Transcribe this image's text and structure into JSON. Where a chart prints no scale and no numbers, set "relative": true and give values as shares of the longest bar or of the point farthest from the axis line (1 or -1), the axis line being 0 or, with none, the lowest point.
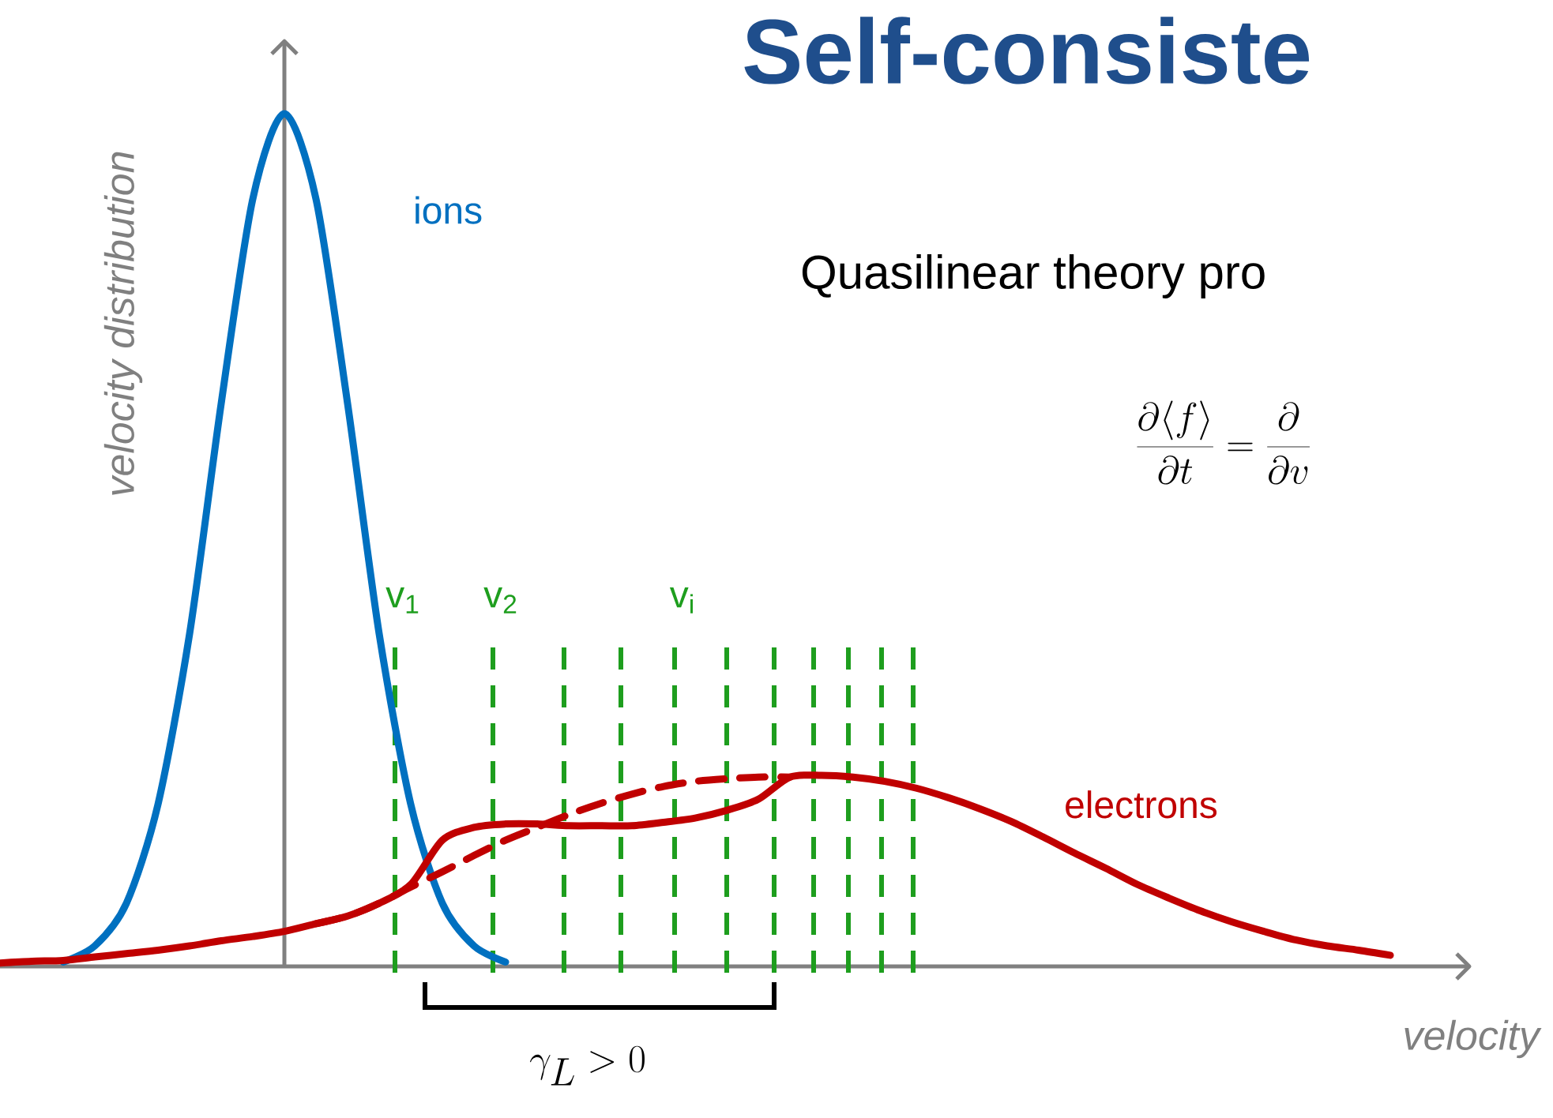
{
  "chart_data": {
    "type": "line",
    "title": "Self-consiste",
    "xlabel": "velocity",
    "ylabel": "velocity distribution",
    "relative": true,
    "marker": "none",
    "categories": [
      null,
      null,
      null,
      null,
      null,
      null,
      null,
      null,
      null,
      null,
      null,
      null,
      null,
      null,
      null,
      null,
      null,
      null,
      null,
      null,
      null,
      null,
      null,
      null,
      null,
      null,
      null,
      null,
      null,
      null,
      null,
      null,
      null,
      null,
      null,
      null,
      null,
      null,
      null,
      null,
      null,
      null,
      null,
      null,
      null
    ],
    "series": [
      {
        "name": "ions",
        "color": "#0070c0",
        "line_style": "solid",
        "values": [
          null,
          null,
          0.005,
          0.024,
          0.074,
          0.19,
          0.39,
          0.66,
          0.9,
          1.0,
          0.9,
          0.66,
          0.39,
          0.19,
          0.074,
          0.024,
          0.005,
          null,
          null,
          null,
          null,
          null,
          null,
          null,
          null,
          null,
          null,
          null,
          null,
          null,
          null,
          null,
          null,
          null,
          null,
          null,
          null,
          null,
          null,
          null,
          null,
          null,
          null,
          null,
          null
        ]
      },
      {
        "name": "electrons",
        "color": "#c00000",
        "line_style": "solid",
        "values": [
          0.004,
          0.006,
          0.007,
          0.011,
          0.015,
          0.019,
          0.024,
          0.03,
          0.035,
          0.041,
          0.05,
          0.059,
          0.074,
          0.096,
          0.148,
          0.163,
          0.167,
          0.167,
          0.165,
          0.165,
          0.165,
          0.169,
          0.174,
          0.183,
          0.196,
          0.222,
          0.224,
          0.222,
          0.217,
          0.209,
          0.198,
          0.185,
          0.17,
          0.152,
          0.133,
          0.115,
          0.096,
          0.08,
          0.065,
          0.052,
          0.041,
          0.031,
          0.024,
          0.019,
          0.013
        ]
      },
      {
        "color": "#c00000",
        "line_style": "dashed",
        "values": [
          null,
          null,
          null,
          null,
          null,
          null,
          null,
          null,
          null,
          null,
          0.05,
          0.059,
          0.074,
          0.093,
          0.111,
          0.13,
          0.148,
          0.163,
          0.178,
          0.191,
          0.202,
          0.211,
          0.217,
          0.22,
          0.222,
          0.222,
          null,
          null,
          null,
          null,
          null,
          null,
          null,
          null,
          null,
          null,
          null,
          null,
          null,
          null,
          null,
          null,
          null,
          null,
          null
        ]
      }
    ],
    "annotations": [
      "Quasilinear theory pro",
      "\\frac{\\partial\\langle f\\rangle}{\\partial t} = \\frac{\\partial}{\\partial v}",
      "\\gamma_L > 0",
      "v$_{1}$",
      "v$_{2}$",
      "v$_{i}$"
    ]
  }
}
